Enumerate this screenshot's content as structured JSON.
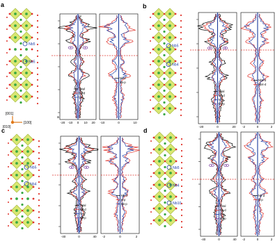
{
  "panels": [
    {
      "label": "a",
      "atoms": [
        "Nb5",
        "Nb5"
      ],
      "left_legend": [
        "Total",
        "Nb-d",
        "N-p"
      ],
      "right_legend": [
        "Nb-d",
        "Nb-p"
      ],
      "left_ticks": [
        "-20",
        "-10",
        "0",
        "10",
        "20"
      ],
      "right_ticks": [
        "-10",
        "0",
        "10"
      ],
      "marker": "a"
    },
    {
      "label": "b",
      "atoms": [
        "Nb5",
        "Nb4"
      ],
      "left_legend": [
        "Total",
        "Nb-d",
        "N-p",
        "Nb-p"
      ],
      "right_legend": [
        "Nb5-d",
        "Nb4-d"
      ],
      "left_ticks": [
        "-20",
        "0",
        "20"
      ],
      "right_ticks": [
        "-2",
        "0",
        "2"
      ],
      "marker": ""
    },
    {
      "label": "c",
      "atoms": [
        "Nb5",
        "Nb4"
      ],
      "left_legend": [
        "Total",
        "Nb-d",
        "N-p",
        "Nb-p"
      ],
      "right_legend": [
        "Nb-d",
        "N-p",
        "Nb-p"
      ],
      "left_ticks": [
        "-40",
        "0",
        "40"
      ],
      "right_ticks": [
        "-2",
        "0",
        "2"
      ],
      "marker": ""
    },
    {
      "label": "d",
      "atoms": [
        "Nb5",
        "Nb4",
        "Nb10"
      ],
      "left_legend": [
        "Total",
        "Nb-d",
        "N-p",
        "Nb-p"
      ],
      "right_legend": [
        "Nb-d",
        "N-p"
      ],
      "left_ticks": [
        "-40",
        "0",
        "40"
      ],
      "right_ticks": [
        "-2",
        "0",
        "2"
      ],
      "marker": ""
    }
  ],
  "axes_legend": {
    "top": "[001]",
    "left": "[010]",
    "right": "[100]"
  },
  "colors": {
    "octahedron": "#d6e66a",
    "octahedron_edge": "#9cb02f",
    "nb_atom": "#3aa845",
    "n_atom": "#e0332b",
    "total": "#000000",
    "red_curve": "#e0332b",
    "blue_curve": "#2040a8",
    "fermi": "#e0332b"
  }
}
